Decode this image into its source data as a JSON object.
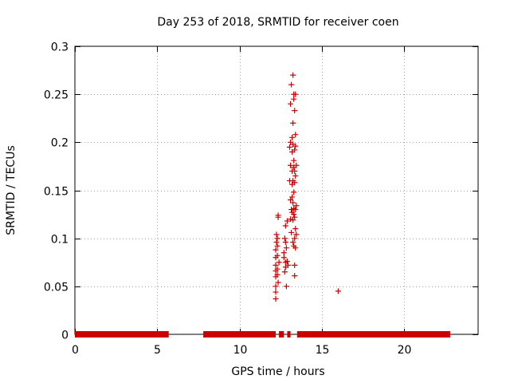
{
  "chart_data": {
    "type": "scatter",
    "title": "Day 253 of 2018, SRMTID for receiver coen",
    "xlabel": "GPS time / hours",
    "ylabel": "SRMTID / TECUs",
    "xlim": [
      0,
      24.5
    ],
    "ylim": [
      0,
      0.3
    ],
    "grid": true,
    "x_ticks": [
      0,
      5,
      10,
      15,
      20
    ],
    "x_tick_labels": [
      "0",
      "5",
      "10",
      "15",
      "20"
    ],
    "y_ticks": [
      0,
      0.05,
      0.1,
      0.15,
      0.2,
      0.25,
      0.3
    ],
    "y_tick_labels": [
      "0",
      "0.05",
      "0.1",
      "0.15",
      "0.2",
      "0.25",
      "0.3"
    ],
    "marker": "+",
    "color": "#cc0000",
    "series": [
      {
        "name": "SRMTID",
        "zero_value_ranges_hours": [
          [
            0.0,
            5.7
          ],
          [
            7.8,
            12.2
          ],
          [
            12.4,
            12.7
          ],
          [
            12.9,
            13.1
          ],
          [
            13.5,
            22.8
          ]
        ],
        "points": [
          {
            "x": 12.2,
            "y": 0.037
          },
          {
            "x": 12.2,
            "y": 0.044
          },
          {
            "x": 12.2,
            "y": 0.05
          },
          {
            "x": 12.2,
            "y": 0.06
          },
          {
            "x": 12.2,
            "y": 0.066
          },
          {
            "x": 12.2,
            "y": 0.072
          },
          {
            "x": 12.2,
            "y": 0.08
          },
          {
            "x": 12.2,
            "y": 0.088
          },
          {
            "x": 12.25,
            "y": 0.096
          },
          {
            "x": 12.25,
            "y": 0.104
          },
          {
            "x": 12.3,
            "y": 0.1
          },
          {
            "x": 12.3,
            "y": 0.092
          },
          {
            "x": 12.3,
            "y": 0.082
          },
          {
            "x": 12.3,
            "y": 0.068
          },
          {
            "x": 12.3,
            "y": 0.062
          },
          {
            "x": 12.35,
            "y": 0.124
          },
          {
            "x": 12.35,
            "y": 0.122
          },
          {
            "x": 12.35,
            "y": 0.054
          },
          {
            "x": 12.4,
            "y": 0.075
          },
          {
            "x": 12.7,
            "y": 0.085
          },
          {
            "x": 12.7,
            "y": 0.08
          },
          {
            "x": 12.75,
            "y": 0.1
          },
          {
            "x": 12.75,
            "y": 0.065
          },
          {
            "x": 12.8,
            "y": 0.113
          },
          {
            "x": 12.8,
            "y": 0.096
          },
          {
            "x": 12.8,
            "y": 0.075
          },
          {
            "x": 12.8,
            "y": 0.07
          },
          {
            "x": 12.85,
            "y": 0.09
          },
          {
            "x": 12.85,
            "y": 0.05
          },
          {
            "x": 12.9,
            "y": 0.118
          },
          {
            "x": 12.9,
            "y": 0.076
          },
          {
            "x": 12.95,
            "y": 0.072
          },
          {
            "x": 13.05,
            "y": 0.195
          },
          {
            "x": 13.05,
            "y": 0.16
          },
          {
            "x": 13.1,
            "y": 0.24
          },
          {
            "x": 13.1,
            "y": 0.2
          },
          {
            "x": 13.1,
            "y": 0.176
          },
          {
            "x": 13.1,
            "y": 0.14
          },
          {
            "x": 13.1,
            "y": 0.12
          },
          {
            "x": 13.15,
            "y": 0.26
          },
          {
            "x": 13.15,
            "y": 0.13
          },
          {
            "x": 13.15,
            "y": 0.106
          },
          {
            "x": 13.2,
            "y": 0.205
          },
          {
            "x": 13.2,
            "y": 0.19
          },
          {
            "x": 13.2,
            "y": 0.17
          },
          {
            "x": 13.2,
            "y": 0.156
          },
          {
            "x": 13.2,
            "y": 0.143
          },
          {
            "x": 13.2,
            "y": 0.127
          },
          {
            "x": 13.25,
            "y": 0.27
          },
          {
            "x": 13.25,
            "y": 0.22
          },
          {
            "x": 13.25,
            "y": 0.198
          },
          {
            "x": 13.25,
            "y": 0.16
          },
          {
            "x": 13.25,
            "y": 0.137
          },
          {
            "x": 13.25,
            "y": 0.119
          },
          {
            "x": 13.25,
            "y": 0.096
          },
          {
            "x": 13.3,
            "y": 0.25
          },
          {
            "x": 13.3,
            "y": 0.245
          },
          {
            "x": 13.3,
            "y": 0.181
          },
          {
            "x": 13.3,
            "y": 0.174
          },
          {
            "x": 13.3,
            "y": 0.148
          },
          {
            "x": 13.3,
            "y": 0.131
          },
          {
            "x": 13.3,
            "y": 0.125
          },
          {
            "x": 13.3,
            "y": 0.092
          },
          {
            "x": 13.35,
            "y": 0.233
          },
          {
            "x": 13.35,
            "y": 0.192
          },
          {
            "x": 13.35,
            "y": 0.17
          },
          {
            "x": 13.35,
            "y": 0.158
          },
          {
            "x": 13.35,
            "y": 0.122
          },
          {
            "x": 13.35,
            "y": 0.1
          },
          {
            "x": 13.35,
            "y": 0.072
          },
          {
            "x": 13.35,
            "y": 0.061
          },
          {
            "x": 13.4,
            "y": 0.25
          },
          {
            "x": 13.4,
            "y": 0.208
          },
          {
            "x": 13.4,
            "y": 0.196
          },
          {
            "x": 13.4,
            "y": 0.165
          },
          {
            "x": 13.4,
            "y": 0.13
          },
          {
            "x": 13.4,
            "y": 0.11
          },
          {
            "x": 13.4,
            "y": 0.09
          },
          {
            "x": 13.45,
            "y": 0.176
          },
          {
            "x": 13.45,
            "y": 0.134
          },
          {
            "x": 13.45,
            "y": 0.104
          },
          {
            "x": 16.0,
            "y": 0.045
          }
        ]
      }
    ]
  }
}
